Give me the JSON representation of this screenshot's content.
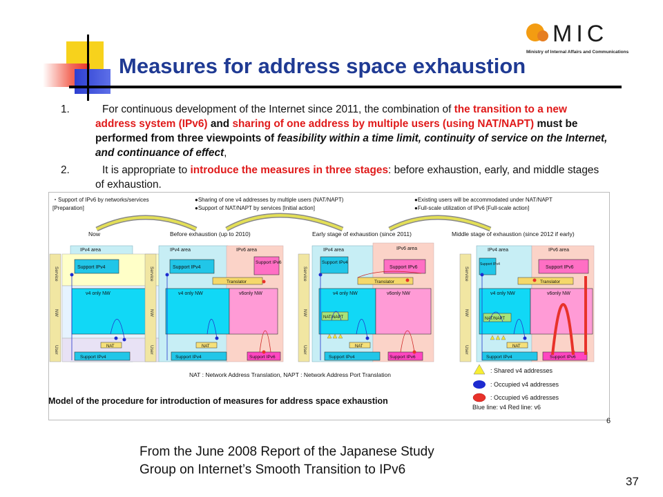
{
  "slide": {
    "title": "Measures for address space exhaustion",
    "page_number": "37",
    "inner_page_number": "6"
  },
  "logo": {
    "text": "MIC",
    "subtext": "Ministry of Internal Affairs and Communications"
  },
  "points": [
    {
      "num": "1.",
      "t1": "For continuous development of the Internet since 2011, the combination of ",
      "r1": "the transition to a new address system (IPv6)",
      "t2": " and ",
      "r2": "sharing of one address by multiple users (using NAT/NAPT)",
      "t3": " must be performed from three viewpoints of ",
      "i1": "feasibility within a time limit, continuity of service on the Internet, and continuance of effect",
      "t4": ","
    },
    {
      "num": "2.",
      "t1": "It is appropriate to ",
      "r1": "introduce the measures in three stages",
      "t2": ": before exhaustion, early, and middle stages of exhaustion."
    }
  ],
  "diagram": {
    "notes": {
      "col1": [
        "・Support of IPv6 by networks/services",
        "[Preparation]"
      ],
      "col2": [
        "●Sharing of one v4 addresses by multiple users (NAT/NAPT)",
        "●Support of NAT/NAPT by services [Initial action]"
      ],
      "col3": [
        "●Existing users will be accommodated under NAT/NAPT",
        "●Full-scale utilization of IPv6 [Full-scale action]"
      ]
    },
    "stages": [
      "Now",
      "Before exhaustion (up to 2010)",
      "Early stage of exhaustion (since 2011)",
      "Middle stage of exhaustion (since 2012 if early)"
    ],
    "labels": {
      "ipv4_area": "IPv4 area",
      "ipv6_area": "IPv6 area",
      "support_ipv4": "Support IPv4",
      "support_ipv6": "Support IPv6",
      "support_ipv6_short": "Support IPv6",
      "support_ipv4_short": "Support IPv4",
      "v4_only_nw": "v4 only NW",
      "v6_only_nw": "v6only NW",
      "translator": "Translator",
      "nat": "NAT",
      "nat_napt": "NAT/NAPT",
      "service": "Service",
      "nw": "NW",
      "user": "User"
    },
    "abbrev": {
      "nat_prefix": "NAT : ",
      "nat_def": "Network Address Translation",
      "napt_prefix": ", NAPT : ",
      "napt_def": "Network Address Port Translation"
    },
    "legend": {
      "shared": ": Shared v4 addresses",
      "occupied_v4": ": Occupied v4 addresses",
      "occupied_v6": ": Occupied v6 addresses",
      "lines": "Blue line: v4     Red line: v6"
    },
    "caption": "Model of the procedure for introduction of measures for address space exhaustion"
  },
  "footer": {
    "line1": "From the June 2008 Report of the Japanese Study",
    "line2": "Group on Internet’s Smooth Transition to IPv6"
  }
}
